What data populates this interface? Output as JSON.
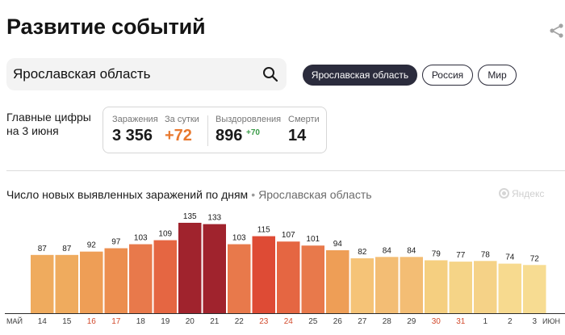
{
  "header": {
    "title": "Развитие событий"
  },
  "search": {
    "value": "Ярославская область"
  },
  "region_pills": [
    {
      "label": "Ярославская область",
      "active": true
    },
    {
      "label": "Россия",
      "active": false
    },
    {
      "label": "Мир",
      "active": false
    }
  ],
  "summary": {
    "caption_line1": "Главные цифры",
    "caption_line2": "на 3 июня",
    "infected_label": "Заражения",
    "infected_value": "3 356",
    "daily_label": "За сутки",
    "daily_value": "+72",
    "recovered_label": "Выздоровления",
    "recovered_value": "896",
    "recovered_delta": "+70",
    "deaths_label": "Смерти",
    "deaths_value": "14"
  },
  "chart_header": {
    "title": "Число новых выявленных заражений по дням",
    "separator": "•",
    "region": "Ярославская область",
    "brand": "Яндекс"
  },
  "colors": {
    "accent_orange": "#e8792f",
    "recovered_green": "#3a9b48",
    "pill_active_bg": "#2b2c3d",
    "weekend_label": "#d24a2c"
  },
  "icons": {
    "search": "search-icon",
    "share": "share-icon",
    "brand": "yandex-logo-icon"
  },
  "chart_data": {
    "type": "bar",
    "title": "Число новых выявленных заражений по дням",
    "month_labels": {
      "start": "МАЙ",
      "end": "ИЮН"
    },
    "categories": [
      "14",
      "15",
      "16",
      "17",
      "18",
      "19",
      "20",
      "21",
      "22",
      "23",
      "24",
      "25",
      "26",
      "27",
      "28",
      "29",
      "30",
      "31",
      "1",
      "2",
      "3"
    ],
    "values": [
      87,
      87,
      92,
      97,
      103,
      109,
      135,
      133,
      103,
      115,
      107,
      101,
      94,
      82,
      84,
      84,
      79,
      77,
      78,
      74,
      72
    ],
    "weekend": [
      false,
      false,
      true,
      true,
      false,
      false,
      false,
      false,
      false,
      true,
      true,
      false,
      false,
      false,
      false,
      false,
      true,
      true,
      false,
      false,
      false
    ],
    "bar_colors": [
      "#efab5e",
      "#efab5e",
      "#ee9e56",
      "#ec8e4f",
      "#e8794b",
      "#e56642",
      "#a0232d",
      "#a0232d",
      "#e8794b",
      "#de4b35",
      "#e56642",
      "#e8794b",
      "#ee9e56",
      "#f5c377",
      "#f3bd74",
      "#f3bd74",
      "#f5cf80",
      "#f5d487",
      "#f5d287",
      "#f7da8f",
      "#f7dc92"
    ],
    "ylim": [
      0,
      135
    ],
    "grid": false,
    "legend": "none"
  }
}
